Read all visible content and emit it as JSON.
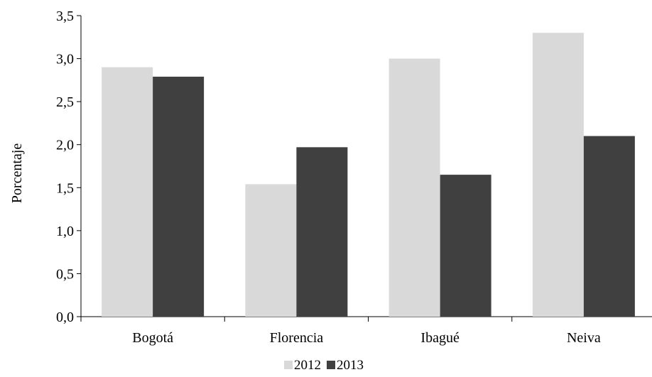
{
  "chart_data": {
    "type": "bar",
    "categories": [
      "Bogotá",
      "Florencia",
      "Ibagué",
      "Neiva"
    ],
    "series": [
      {
        "name": "2012",
        "values": [
          2.9,
          1.54,
          3.0,
          3.3
        ],
        "color": "#d9d9d9"
      },
      {
        "name": "2013",
        "values": [
          2.79,
          1.97,
          1.65,
          2.1
        ],
        "color": "#404040"
      }
    ],
    "ylabel": "Porcentaje",
    "xlabel": "",
    "ylim": [
      0,
      3.5
    ],
    "yticks": [
      "0,0",
      "0,5",
      "1,0",
      "1,5",
      "2,0",
      "2,5",
      "3,0",
      "3,5"
    ],
    "grid": false,
    "legend_position": "bottom-center"
  }
}
